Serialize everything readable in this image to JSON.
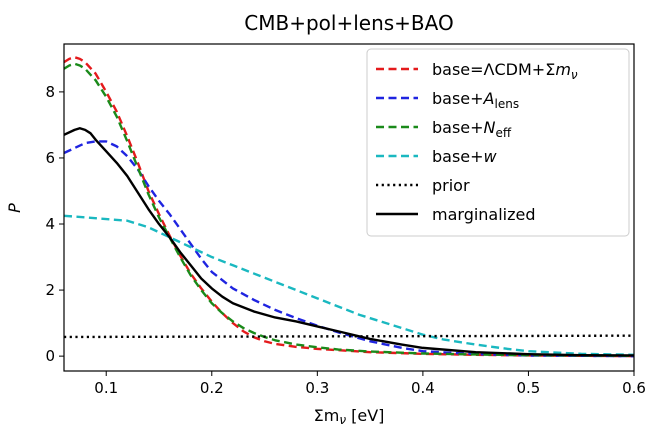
{
  "chart_data": {
    "type": "line",
    "title": "CMB+pol+lens+BAO",
    "xlabel": "Σm",
    "xlabel_sub": "ν",
    "xlabel_unit": " [eV]",
    "ylabel": "P",
    "xlim": [
      0.06,
      0.6
    ],
    "ylim": [
      -0.45,
      9.45
    ],
    "xticks": [
      "0.1",
      "0.2",
      "0.3",
      "0.4",
      "0.5",
      "0.6"
    ],
    "yticks": [
      "0",
      "2",
      "4",
      "6",
      "8"
    ],
    "grid": false,
    "legend_position": "top-right",
    "series": [
      {
        "name": "base=ΛCDM+Σm",
        "name_sub": "ν",
        "color": "#e41a1c",
        "dash": "dashed",
        "x": [
          0.06,
          0.065,
          0.07,
          0.075,
          0.08,
          0.09,
          0.1,
          0.11,
          0.12,
          0.13,
          0.14,
          0.15,
          0.16,
          0.17,
          0.18,
          0.19,
          0.2,
          0.21,
          0.22,
          0.23,
          0.24,
          0.25,
          0.26,
          0.28,
          0.3,
          0.32,
          0.35,
          0.4,
          0.45,
          0.5,
          0.55,
          0.6
        ],
        "y": [
          8.9,
          9.0,
          9.05,
          9.0,
          8.9,
          8.55,
          8.0,
          7.4,
          6.65,
          5.85,
          5.0,
          4.3,
          3.65,
          3.05,
          2.5,
          2.05,
          1.65,
          1.3,
          1.0,
          0.75,
          0.57,
          0.45,
          0.37,
          0.28,
          0.22,
          0.18,
          0.12,
          0.07,
          0.04,
          0.02,
          0.01,
          0.0
        ]
      },
      {
        "name": "base+A",
        "name_sub": "lens",
        "color": "#1f24e0",
        "dash": "dashed",
        "x": [
          0.06,
          0.07,
          0.08,
          0.09,
          0.1,
          0.11,
          0.12,
          0.13,
          0.14,
          0.15,
          0.16,
          0.17,
          0.18,
          0.19,
          0.2,
          0.22,
          0.24,
          0.26,
          0.28,
          0.3,
          0.32,
          0.35,
          0.38,
          0.4,
          0.45,
          0.5,
          0.55,
          0.6
        ],
        "y": [
          6.15,
          6.3,
          6.45,
          6.5,
          6.5,
          6.35,
          6.05,
          5.65,
          5.15,
          4.7,
          4.3,
          3.85,
          3.4,
          2.95,
          2.55,
          2.05,
          1.7,
          1.4,
          1.15,
          0.92,
          0.72,
          0.45,
          0.25,
          0.15,
          0.06,
          0.02,
          0.01,
          0.0
        ]
      },
      {
        "name": "base+N",
        "name_sub": "eff",
        "color": "#1a8a1a",
        "dash": "dashed",
        "x": [
          0.06,
          0.065,
          0.07,
          0.075,
          0.08,
          0.09,
          0.1,
          0.11,
          0.12,
          0.13,
          0.14,
          0.15,
          0.16,
          0.17,
          0.18,
          0.19,
          0.2,
          0.21,
          0.22,
          0.23,
          0.24,
          0.25,
          0.26,
          0.28,
          0.3,
          0.32,
          0.35,
          0.4,
          0.45,
          0.5,
          0.55,
          0.6
        ],
        "y": [
          8.7,
          8.8,
          8.85,
          8.8,
          8.7,
          8.35,
          7.85,
          7.25,
          6.5,
          5.7,
          4.9,
          4.2,
          3.6,
          3.0,
          2.45,
          2.0,
          1.6,
          1.3,
          1.05,
          0.85,
          0.7,
          0.58,
          0.48,
          0.35,
          0.27,
          0.2,
          0.14,
          0.08,
          0.05,
          0.03,
          0.02,
          0.01
        ]
      },
      {
        "name": "base+w",
        "name_sub": "",
        "color": "#1ab8c0",
        "dash": "dashed",
        "x": [
          0.06,
          0.08,
          0.1,
          0.12,
          0.14,
          0.15,
          0.16,
          0.17,
          0.18,
          0.2,
          0.22,
          0.24,
          0.26,
          0.28,
          0.3,
          0.32,
          0.34,
          0.36,
          0.38,
          0.4,
          0.42,
          0.45,
          0.48,
          0.5,
          0.55,
          0.6
        ],
        "y": [
          4.25,
          4.2,
          4.15,
          4.1,
          3.9,
          3.75,
          3.6,
          3.45,
          3.3,
          3.0,
          2.75,
          2.5,
          2.25,
          2.0,
          1.75,
          1.5,
          1.25,
          1.05,
          0.85,
          0.65,
          0.5,
          0.35,
          0.22,
          0.15,
          0.07,
          0.04
        ]
      },
      {
        "name": "prior",
        "name_sub": "",
        "color": "#000000",
        "dash": "dotted",
        "x": [
          0.06,
          0.6
        ],
        "y": [
          0.58,
          0.62
        ]
      },
      {
        "name": "marginalized",
        "name_sub": "",
        "color": "#000000",
        "dash": "solid",
        "x": [
          0.06,
          0.07,
          0.075,
          0.08,
          0.085,
          0.09,
          0.1,
          0.11,
          0.12,
          0.13,
          0.14,
          0.15,
          0.16,
          0.17,
          0.18,
          0.19,
          0.2,
          0.21,
          0.22,
          0.24,
          0.26,
          0.28,
          0.3,
          0.32,
          0.35,
          0.38,
          0.4,
          0.45,
          0.5,
          0.55,
          0.6
        ],
        "y": [
          6.7,
          6.85,
          6.9,
          6.85,
          6.75,
          6.55,
          6.2,
          5.85,
          5.45,
          4.95,
          4.45,
          4.0,
          3.6,
          3.15,
          2.75,
          2.35,
          2.05,
          1.8,
          1.6,
          1.35,
          1.17,
          1.05,
          0.9,
          0.75,
          0.52,
          0.35,
          0.25,
          0.12,
          0.06,
          0.03,
          0.02
        ]
      }
    ]
  }
}
